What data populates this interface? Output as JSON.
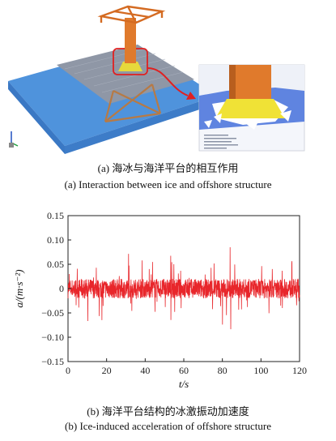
{
  "figure_a": {
    "caption_cn": "(a) 海冰与海洋平台的相互作用",
    "caption_en": "(a) Interaction between ice and offshore structure"
  },
  "figure_b": {
    "caption_cn": "(b) 海洋平台结构的冰激振动加速度",
    "caption_en": "(b) Ice-induced acceleration of offshore structure"
  },
  "chart_data": {
    "type": "line",
    "title": "",
    "xlabel": "t/s",
    "ylabel": "a/(m·s⁻²)",
    "xlim": [
      0,
      120
    ],
    "ylim": [
      -0.15,
      0.15
    ],
    "xticks": [
      0,
      20,
      40,
      60,
      80,
      100,
      120
    ],
    "yticks": [
      0.15,
      0.1,
      0.05,
      0,
      -0.05,
      -0.1,
      -0.15
    ],
    "ytick_labels": [
      "0.15",
      "0.10",
      "0.05",
      "0",
      "−0.05",
      "−0.10",
      "−0.15"
    ],
    "series_color": "#e8262b",
    "grid": false,
    "series": [
      {
        "x": [
          0,
          2,
          4,
          6,
          8,
          10,
          12,
          14,
          16,
          18,
          20,
          22,
          24,
          26,
          28,
          30,
          32,
          34,
          36,
          38,
          40,
          42,
          44,
          46,
          48,
          50,
          52,
          54,
          56,
          58,
          60,
          62,
          64,
          66,
          68,
          70,
          72,
          74,
          76,
          78,
          80,
          82,
          84,
          86,
          88,
          90,
          92,
          94,
          96,
          98,
          100,
          102,
          104,
          106,
          108,
          110,
          112,
          114,
          116,
          118,
          120
        ],
        "y": [
          0.01,
          0.06,
          -0.05,
          0.03,
          -0.04,
          0.05,
          -0.06,
          0.07,
          -0.04,
          0.05,
          -0.03,
          0.06,
          -0.05,
          0.04,
          -0.04,
          0.06,
          -0.06,
          0.05,
          -0.03,
          0.04,
          -0.05,
          0.06,
          -0.04,
          0.05,
          -0.05,
          0.04,
          -0.06,
          0.07,
          -0.04,
          0.05,
          -0.03,
          0.04,
          -0.05,
          0.06,
          -0.04,
          0.07,
          -0.05,
          0.08,
          -0.06,
          0.05,
          -0.07,
          0.12,
          -0.08,
          0.07,
          -0.05,
          0.06,
          -0.04,
          0.05,
          -0.06,
          0.07,
          -0.05,
          0.06,
          -0.04,
          0.05,
          -0.06,
          0.04,
          -0.05,
          0.06,
          -0.04,
          0.05,
          0.0
        ]
      }
    ]
  }
}
